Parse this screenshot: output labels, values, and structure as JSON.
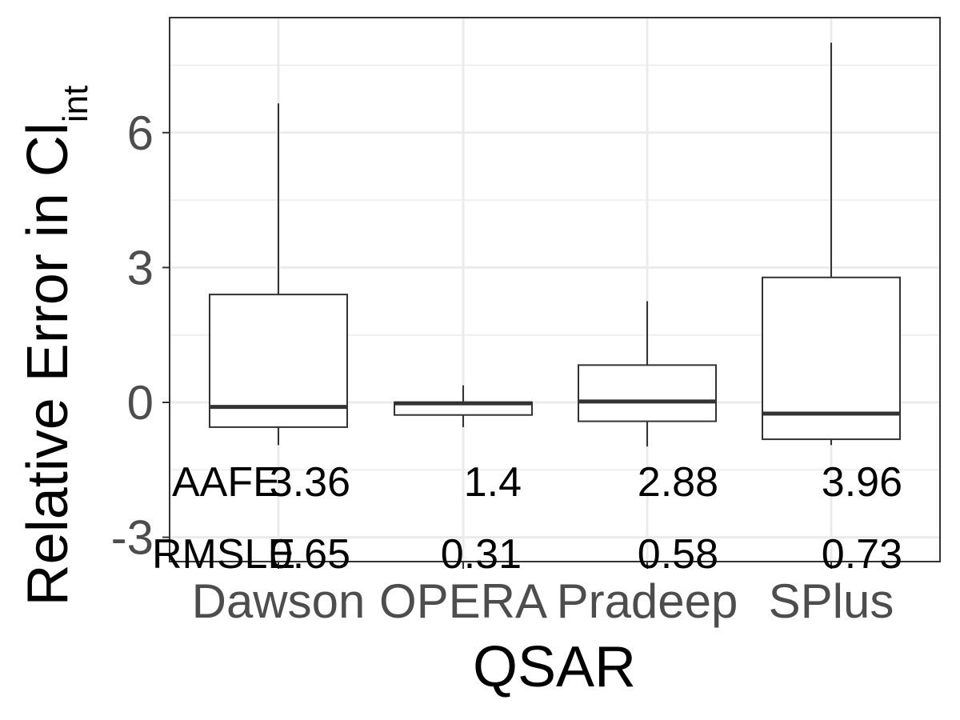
{
  "chart_data": {
    "type": "box",
    "xlabel": "QSAR",
    "ylabel": "Relative Error in Cl",
    "ylabel_subscript": "int",
    "ylim": [
      -3.5,
      8.5
    ],
    "yticks": [
      -3,
      0,
      3,
      6
    ],
    "ytick_labels": [
      "-3",
      "0",
      "3",
      "6"
    ],
    "grid": true,
    "categories": [
      "Dawson",
      "OPERA",
      "Pradeep",
      "SPlus"
    ],
    "boxes": [
      {
        "name": "Dawson",
        "whisker_low": -0.95,
        "q1": -0.55,
        "median": -0.1,
        "q3": 2.4,
        "whisker_high": 6.65
      },
      {
        "name": "OPERA",
        "whisker_low": -0.55,
        "q1": -0.28,
        "median": -0.02,
        "q3": 0.0,
        "whisker_high": 0.38
      },
      {
        "name": "Pradeep",
        "whisker_low": -0.98,
        "q1": -0.42,
        "median": 0.02,
        "q3": 0.83,
        "whisker_high": 2.25
      },
      {
        "name": "SPlus",
        "whisker_low": -0.95,
        "q1": -0.82,
        "median": -0.25,
        "q3": 2.78,
        "whisker_high": 8.0
      }
    ],
    "annotations": {
      "row_labels": [
        "AAFE",
        "RMSLE"
      ],
      "AAFE": [
        "3.36",
        "1.4",
        "2.88",
        "3.96"
      ],
      "RMSLE": [
        "0.65",
        "0.31",
        "0.58",
        "0.73"
      ]
    },
    "colors": {
      "box_fill": "#ffffff",
      "box_stroke": "#333333",
      "panel_border": "#333333",
      "grid": "#ebebeb"
    }
  }
}
